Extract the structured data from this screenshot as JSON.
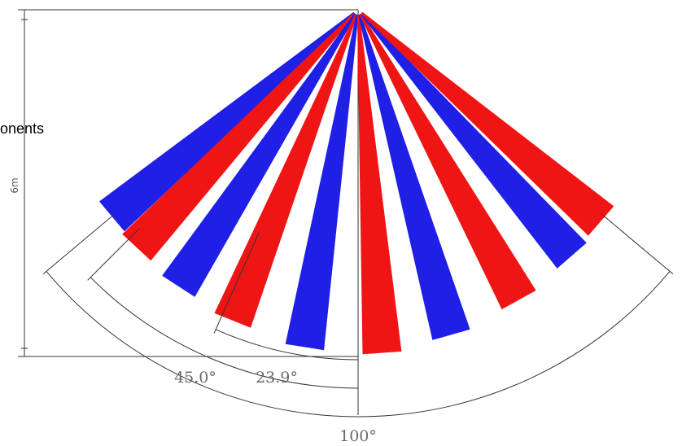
{
  "figure": {
    "side_text": "onents",
    "height_label": "6m",
    "angles": {
      "total": "100°",
      "mid": "45.0°",
      "inner": "23.9°"
    },
    "beam_colors": {
      "blue": "#1f1fe6",
      "red": "#f01515"
    },
    "beams": [
      {
        "color": "blue",
        "angle_deg": -50
      },
      {
        "color": "red",
        "angle_deg": -43
      },
      {
        "color": "blue",
        "angle_deg": -33
      },
      {
        "color": "red",
        "angle_deg": -22
      },
      {
        "color": "blue",
        "angle_deg": -9
      },
      {
        "color": "red",
        "angle_deg": 4
      },
      {
        "color": "blue",
        "angle_deg": 16
      },
      {
        "color": "red",
        "angle_deg": 29
      },
      {
        "color": "blue",
        "angle_deg": 41
      },
      {
        "color": "red",
        "angle_deg": 49
      }
    ]
  }
}
